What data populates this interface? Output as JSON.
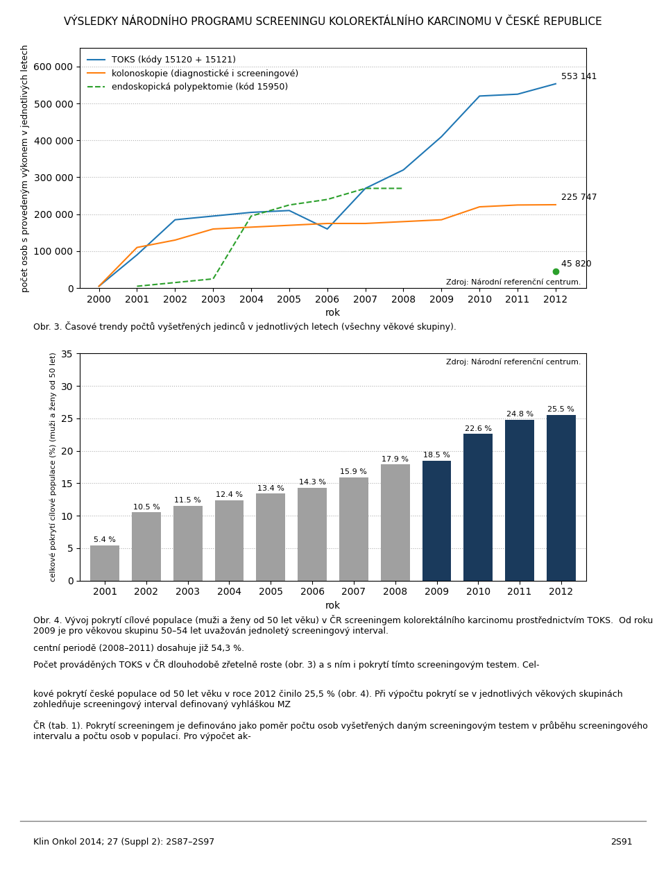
{
  "title": "VÝSLEDKY NÁRODNÍHO PROGRAMU SCREENINGU KOLOREKTÁLNÍHO KARCINOMU V ČESKÉ REPUBLICE",
  "annotations": [
    "Klin Onkol 2014; 27 (Suppl 2): 2S87–2S97",
    "2S91",
    "centní periodě (2008–2011) dosahuje již 54,3 %.",
    "Počet prováděných TOKS v ČR dlouhodobě zřetelně roste (obr. 3) a s ním i pokrytí tímto screeningovým testem. Cel-",
    "kové pokrytí české populace od 50 let věku v roce 2012 činilo 25,5 % (obr. 4). Při výpočtu pokrytí se v jednotlivých věkových skupinách zohledňuje screeningový interval definovaný vyhláškou MZ",
    "ČR (tab. 1). Pokrytí screeningem je definováno jako poměr počtu osob vyšetřených daným screeningovým testem v průběhu screeningového intervalu a počtu osob v populaci. Pro výpočet ak-"
  ],
  "chart_data": [
    {
      "type": "line",
      "x": [
        2000,
        2001,
        2002,
        2003,
        2004,
        2005,
        2006,
        2007,
        2008,
        2009,
        2010,
        2011,
        2012
      ],
      "xlim": [
        1999.5,
        2012.8
      ],
      "xticks": [
        2000,
        2001,
        2002,
        2003,
        2004,
        2005,
        2006,
        2007,
        2008,
        2009,
        2010,
        2011,
        2012
      ],
      "ylim": [
        0,
        650000
      ],
      "yticks": [
        0,
        {
          "value": 100000,
          "label": "100 000"
        },
        {
          "value": 200000,
          "label": "200 000"
        },
        {
          "value": 300000,
          "label": "300 000"
        },
        {
          "value": 400000,
          "label": "400 000"
        },
        {
          "value": 500000,
          "label": "500 000"
        },
        {
          "value": 600000,
          "label": "600 000"
        }
      ],
      "xlabel": "rok",
      "ylabel": "počet osob s provedeným výkonem v jednotlivých letech",
      "grid": true,
      "legend": "upper left",
      "data_labels": true,
      "annotations": [
        "Zdroj: Národní referenční centrum.",
        "Obr. 3. Časové trendy počtů vyšetřených jedinců v jednotlivých letech (všechny věkové skupiny)."
      ],
      "series": [
        {
          "name": "TOKS (kódy 15120 + 15121)",
          "values": [
            5000,
            90000,
            185000,
            195000,
            205000,
            210000,
            160000,
            270000,
            320000,
            410000,
            520000,
            525000,
            553141
          ],
          "value_labels": [
            null,
            null,
            null,
            null,
            null,
            null,
            null,
            null,
            null,
            null,
            null,
            null,
            "553 141"
          ]
        },
        {
          "name": "kolonoskopie (diagnostické i screeningové)",
          "values": [
            5000,
            110000,
            130000,
            160000,
            165000,
            170000,
            175000,
            175000,
            180000,
            185000,
            220000,
            225000,
            225747
          ],
          "value_labels": [
            null,
            null,
            null,
            null,
            null,
            null,
            null,
            null,
            null,
            null,
            null,
            null,
            "225 747"
          ]
        },
        {
          "name": "endoskopická polypektomie (kód 15950)",
          "line_style": "dashed",
          "values": [
            null,
            5000,
            15000,
            25000,
            195000,
            225000,
            240000,
            270000,
            270000,
            null,
            null,
            null,
            45820
          ],
          "value_labels": [
            null,
            null,
            null,
            null,
            null,
            null,
            null,
            null,
            null,
            null,
            null,
            null,
            "45 820"
          ]
        }
      ]
    },
    {
      "type": "bar",
      "categories": [
        "2001",
        "2002",
        "2003",
        "2004",
        "2005",
        "2006",
        "2007",
        "2008",
        "2009",
        "2010",
        "2011",
        "2012"
      ],
      "values": [
        5.4,
        10.5,
        11.5,
        12.4,
        13.4,
        14.3,
        15.9,
        17.9,
        18.5,
        22.6,
        24.8,
        25.5
      ],
      "value_labels": [
        "5.4 %",
        "10.5 %",
        "11.5 %",
        "12.4 %",
        "13.4 %",
        "14.3 %",
        "15.9 %",
        "17.9 %",
        "18.5 %",
        "22.6 %",
        "24.8 %",
        "25.5 %"
      ],
      "data_labels": true,
      "colors": [
        "#a0a0a0",
        "#a0a0a0",
        "#a0a0a0",
        "#a0a0a0",
        "#a0a0a0",
        "#a0a0a0",
        "#a0a0a0",
        "#a0a0a0",
        "#1a3a5c",
        "#1a3a5c",
        "#1a3a5c",
        "#1a3a5c"
      ],
      "ylim": [
        0,
        35
      ],
      "yticks": [
        0,
        5,
        10,
        15,
        20,
        25,
        30,
        35
      ],
      "xlabel": "rok",
      "ylabel": "celkové pokrytí cílové populace (%) (muži a ženy od 50 let)",
      "grid": true,
      "annotations": [
        "Zdroj: Národní referenční centrum.",
        "Obr. 4. Vývoj pokrytí cílové populace (muži a ženy od 50 let věku) v ČR screeningem kolorektálního karcinomu prostřednictvím TOKS.  Od roku 2009 je pro věkovou skupinu 50–54 let uvažován jednoletý screeningový interval."
      ]
    }
  ]
}
